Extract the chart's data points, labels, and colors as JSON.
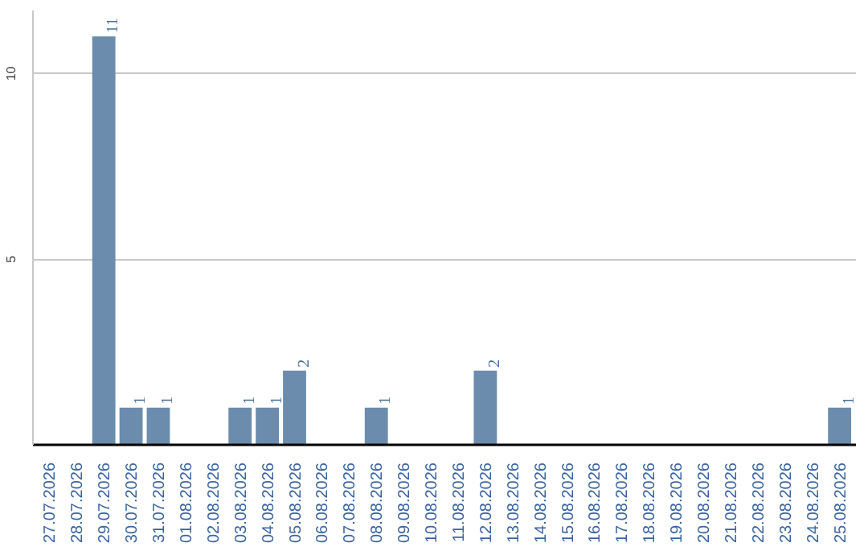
{
  "chart_data": {
    "type": "bar",
    "categories": [
      "27.07.2026",
      "28.07.2026",
      "29.07.2026",
      "30.07.2026",
      "31.07.2026",
      "01.08.2026",
      "02.08.2026",
      "03.08.2026",
      "04.08.2026",
      "05.08.2026",
      "06.08.2026",
      "07.08.2026",
      "08.08.2026",
      "09.08.2026",
      "10.08.2026",
      "11.08.2026",
      "12.08.2026",
      "13.08.2026",
      "14.08.2026",
      "15.08.2026",
      "16.08.2026",
      "17.08.2026",
      "18.08.2026",
      "19.08.2026",
      "20.08.2026",
      "21.08.2026",
      "22.08.2026",
      "23.08.2026",
      "24.08.2026",
      "25.08.2026"
    ],
    "values": [
      0,
      0,
      11,
      1,
      1,
      0,
      0,
      1,
      1,
      2,
      0,
      0,
      1,
      0,
      0,
      0,
      2,
      0,
      0,
      0,
      0,
      0,
      0,
      0,
      0,
      0,
      0,
      0,
      0,
      1
    ],
    "value_labels": [
      null,
      null,
      "11",
      "1",
      "1",
      null,
      null,
      "1",
      "1",
      "2",
      null,
      null,
      "1",
      null,
      null,
      null,
      "2",
      null,
      null,
      null,
      null,
      null,
      null,
      null,
      null,
      null,
      null,
      null,
      null,
      "1"
    ],
    "color": "#6b8cad",
    "ylim": [
      0,
      11.7
    ],
    "yticks": [
      5,
      10
    ],
    "grid": "y"
  }
}
